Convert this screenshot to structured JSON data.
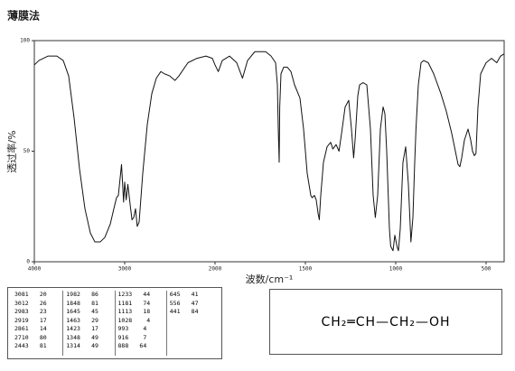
{
  "chart_data": {
    "type": "line",
    "title": "薄膜法",
    "xlabel": "波数/cm⁻¹",
    "ylabel": "透过率/%",
    "x": [
      4000,
      3950,
      3850,
      3750,
      3680,
      3620,
      3560,
      3500,
      3440,
      3380,
      3330,
      3270,
      3220,
      3160,
      3120,
      3090,
      3070,
      3050,
      3035,
      3012,
      3000,
      2983,
      2965,
      2940,
      2919,
      2900,
      2880,
      2861,
      2840,
      2800,
      2750,
      2700,
      2650,
      2600,
      2560,
      2500,
      2443,
      2400,
      2300,
      2200,
      2100,
      2030,
      2000,
      1982,
      1960,
      1920,
      1880,
      1848,
      1820,
      1780,
      1720,
      1690,
      1665,
      1655,
      1650,
      1645,
      1642,
      1635,
      1620,
      1600,
      1580,
      1560,
      1530,
      1510,
      1490,
      1470,
      1463,
      1450,
      1440,
      1430,
      1423,
      1415,
      1400,
      1380,
      1360,
      1348,
      1330,
      1314,
      1300,
      1280,
      1260,
      1245,
      1233,
      1225,
      1210,
      1200,
      1181,
      1160,
      1140,
      1125,
      1113,
      1100,
      1085,
      1070,
      1060,
      1050,
      1035,
      1028,
      1015,
      1005,
      993,
      985,
      975,
      960,
      945,
      930,
      916,
      905,
      895,
      888,
      875,
      860,
      845,
      820,
      790,
      750,
      720,
      690,
      670,
      655,
      645,
      635,
      620,
      600,
      585,
      575,
      565,
      556,
      545,
      530,
      500,
      470,
      441,
      420,
      400
    ],
    "values": [
      89,
      91,
      93,
      93,
      91,
      84,
      65,
      42,
      24,
      13,
      9,
      9,
      11,
      17,
      24,
      29,
      30,
      38,
      44,
      27,
      36,
      28,
      35,
      26,
      19,
      20,
      24,
      16,
      18,
      40,
      62,
      76,
      83,
      86,
      85,
      84,
      82,
      84,
      90,
      92,
      93,
      92,
      89,
      86,
      91,
      93,
      90,
      83,
      91,
      95,
      95,
      93,
      90,
      80,
      60,
      45,
      70,
      85,
      88,
      88,
      86,
      80,
      74,
      60,
      40,
      30,
      29,
      30,
      28,
      22,
      19,
      30,
      45,
      52,
      54,
      51,
      53,
      50,
      58,
      70,
      73,
      60,
      47,
      55,
      75,
      80,
      81,
      80,
      60,
      30,
      20,
      30,
      60,
      70,
      67,
      50,
      15,
      7,
      5,
      12,
      7,
      5,
      15,
      45,
      52,
      35,
      9,
      20,
      45,
      60,
      80,
      90,
      91,
      90,
      85,
      76,
      68,
      58,
      50,
      44,
      43,
      47,
      55,
      60,
      55,
      50,
      48,
      49,
      70,
      85,
      90,
      92,
      90,
      93,
      94
    ],
    "color": "#111",
    "xlim": [
      4000,
      400
    ],
    "ylim": [
      0,
      100
    ],
    "xticks": [
      4000,
      3000,
      2000,
      1500,
      1000,
      500
    ],
    "yticks": [
      0,
      50,
      100
    ]
  },
  "peak_table": {
    "columns": [
      [
        [
          3081,
          20
        ],
        [
          3012,
          26
        ],
        [
          2983,
          23
        ],
        [
          2919,
          17
        ],
        [
          2861,
          14
        ],
        [
          2710,
          80
        ],
        [
          2443,
          81
        ]
      ],
      [
        [
          1982,
          86
        ],
        [
          1848,
          81
        ],
        [
          1645,
          45
        ],
        [
          1463,
          29
        ],
        [
          1423,
          17
        ],
        [
          1348,
          49
        ],
        [
          1314,
          49
        ]
      ],
      [
        [
          1233,
          44
        ],
        [
          1181,
          74
        ],
        [
          1113,
          18
        ],
        [
          1028,
          4
        ],
        [
          993,
          4
        ],
        [
          916,
          7
        ],
        [
          888,
          64
        ]
      ],
      [
        [
          645,
          41
        ],
        [
          556,
          47
        ],
        [
          441,
          84
        ]
      ]
    ]
  },
  "structure": "CH₂═CH—CH₂—OH"
}
